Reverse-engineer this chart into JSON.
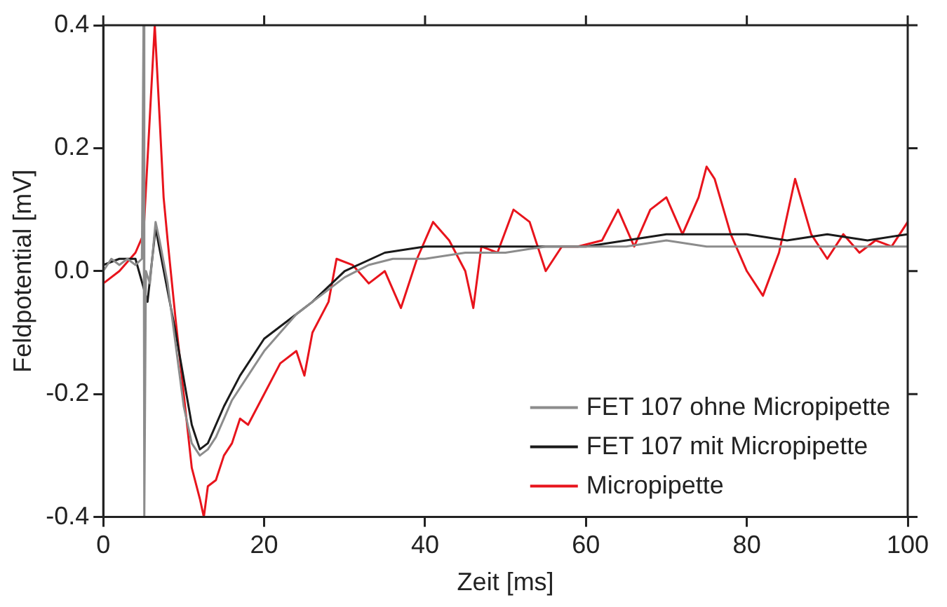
{
  "chart_data": {
    "type": "line",
    "xlabel": "Zeit [ms]",
    "ylabel": "Feldpotential [mV]",
    "xlim": [
      0,
      100
    ],
    "xticks": [
      0,
      20,
      40,
      60,
      80,
      100
    ],
    "ylim": [
      -0.4,
      0.4
    ],
    "yticks": [
      {
        "value": -0.4,
        "label": "-0.4"
      },
      {
        "value": -0.2,
        "label": "-0.2"
      },
      {
        "value": 0,
        "label": "0.0"
      },
      {
        "value": 0.2,
        "label": "0.2"
      },
      {
        "value": 0.4,
        "label": "0.4"
      }
    ],
    "grid": false,
    "legend": "bottom right",
    "marker": "none",
    "line_style": "solid",
    "series": [
      {
        "name": "FET 107 ohne Micropipette",
        "color": "#8c8c8c",
        "x": [
          0,
          1,
          2,
          3,
          4,
          4.8,
          5,
          5.1,
          5.3,
          5.8,
          6.5,
          7,
          8,
          9,
          10,
          11,
          12,
          13,
          14,
          15,
          16,
          18,
          20,
          22,
          24,
          26,
          28,
          30,
          33,
          36,
          40,
          45,
          50,
          55,
          60,
          65,
          70,
          75,
          80,
          85,
          90,
          95,
          100
        ],
        "values": [
          0,
          0.02,
          0.01,
          0.02,
          0.01,
          0.02,
          0.4,
          -0.4,
          0,
          -0.02,
          0.08,
          0.05,
          -0.02,
          -0.12,
          -0.22,
          -0.28,
          -0.3,
          -0.29,
          -0.27,
          -0.24,
          -0.21,
          -0.17,
          -0.13,
          -0.1,
          -0.07,
          -0.05,
          -0.03,
          -0.01,
          0.01,
          0.02,
          0.02,
          0.03,
          0.03,
          0.04,
          0.04,
          0.04,
          0.05,
          0.04,
          0.04,
          0.04,
          0.04,
          0.04,
          0.04
        ]
      },
      {
        "name": "FET 107 mit Micropipette",
        "color": "#1a1a1a",
        "x": [
          0,
          2,
          4,
          5.5,
          6.5,
          9,
          11,
          12,
          13,
          15,
          17,
          20,
          23,
          26,
          30,
          35,
          40,
          50,
          60,
          70,
          75,
          80,
          85,
          90,
          95,
          100
        ],
        "values": [
          0.01,
          0.02,
          0.02,
          -0.05,
          0.07,
          -0.1,
          -0.25,
          -0.29,
          -0.28,
          -0.22,
          -0.17,
          -0.11,
          -0.08,
          -0.05,
          0,
          0.03,
          0.04,
          0.04,
          0.04,
          0.06,
          0.06,
          0.06,
          0.05,
          0.06,
          0.05,
          0.06
        ]
      },
      {
        "name": "Micropipette",
        "color": "#e8141c",
        "x": [
          0,
          2,
          4,
          5,
          6.4,
          7,
          7.5,
          8,
          9,
          10,
          11,
          12,
          12.5,
          13,
          14,
          15,
          16,
          17,
          18,
          20,
          22,
          24,
          25,
          26,
          28,
          29,
          31,
          33,
          35,
          37,
          39,
          41,
          43,
          45,
          46,
          47,
          49,
          51,
          53,
          55,
          57,
          59,
          62,
          64,
          66,
          68,
          70,
          72,
          74,
          75,
          76,
          78,
          80,
          82,
          84,
          86,
          88,
          90,
          92,
          94,
          96,
          98,
          100
        ],
        "values": [
          -0.02,
          0,
          0.03,
          0.06,
          0.4,
          0.25,
          0.12,
          0.05,
          -0.08,
          -0.2,
          -0.32,
          -0.37,
          -0.4,
          -0.35,
          -0.34,
          -0.3,
          -0.28,
          -0.24,
          -0.25,
          -0.2,
          -0.15,
          -0.13,
          -0.17,
          -0.1,
          -0.05,
          0.02,
          0.01,
          -0.02,
          0,
          -0.06,
          0.02,
          0.08,
          0.05,
          0,
          -0.06,
          0.04,
          0.03,
          0.1,
          0.08,
          0,
          0.04,
          0.04,
          0.05,
          0.1,
          0.04,
          0.1,
          0.12,
          0.06,
          0.12,
          0.17,
          0.15,
          0.06,
          0,
          -0.04,
          0.03,
          0.15,
          0.06,
          0.02,
          0.06,
          0.03,
          0.05,
          0.04,
          0.08
        ]
      }
    ]
  }
}
